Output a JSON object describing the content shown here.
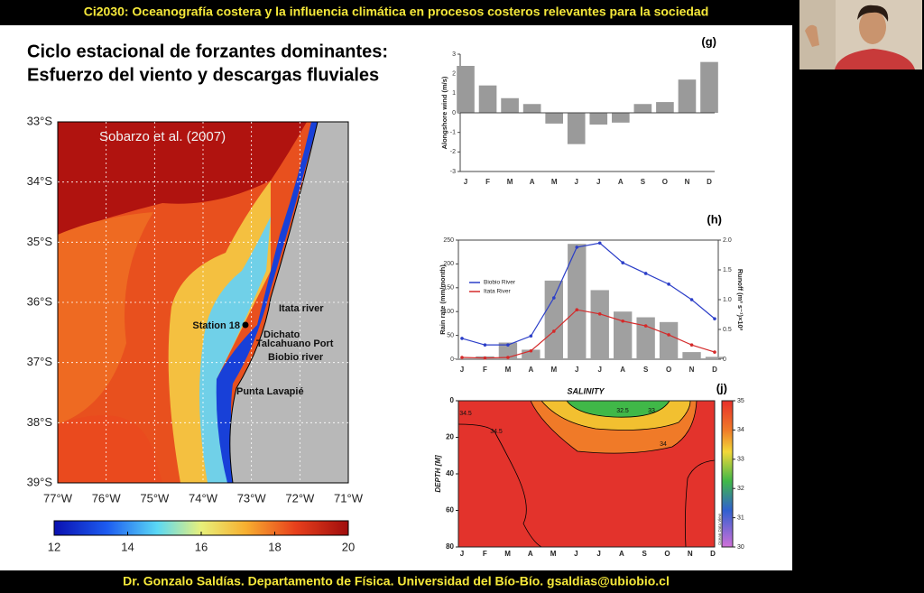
{
  "header": {
    "title": "Ci2030: Oceanografía costera y la influencia climática en procesos costeros relevantes para la sociedad"
  },
  "slide": {
    "title_lines": [
      "Ciclo estacional de forzantes dominantes:",
      "Esfuerzo del viento y descargas fluviales"
    ]
  },
  "map": {
    "citation": "Sobarzo et al. (2007)",
    "lat_labels": [
      "33°S",
      "34°S",
      "35°S",
      "36°S",
      "37°S",
      "38°S",
      "39°S"
    ],
    "lon_labels": [
      "77°W",
      "76°W",
      "75°W",
      "74°W",
      "73°W",
      "72°W",
      "71°W"
    ],
    "places": [
      "Itata river",
      "Station 18",
      "Dichato",
      "Talcahuano Port",
      "Biobio river",
      "Punta Lavapié"
    ],
    "colorbar": {
      "lim": [
        12,
        20
      ],
      "ticks": [
        12,
        14,
        16,
        18,
        20
      ]
    }
  },
  "chart_data": [
    {
      "type": "bar",
      "panel": "(g)",
      "y_label": "Alongshore wind (m/s)",
      "categories": [
        "J",
        "F",
        "M",
        "A",
        "M",
        "J",
        "J",
        "A",
        "S",
        "O",
        "N",
        "D"
      ],
      "values": [
        2.4,
        1.4,
        0.75,
        0.45,
        -0.55,
        -1.6,
        -0.6,
        -0.5,
        0.45,
        0.55,
        1.7,
        2.6
      ],
      "color": "#9a9a9a",
      "ylim": [
        -3,
        3
      ],
      "yticks": [
        -3,
        -2,
        -1,
        0,
        1,
        2,
        3
      ]
    },
    {
      "type": "bar",
      "panel": "(h)",
      "y_label": "Rain rate (mm/month)",
      "y2_label": "Runoff (m³ s⁻¹)×10³",
      "categories": [
        "J",
        "F",
        "M",
        "A",
        "M",
        "J",
        "J",
        "A",
        "S",
        "O",
        "N",
        "D"
      ],
      "values": [
        2,
        6,
        35,
        20,
        165,
        242,
        145,
        100,
        88,
        78,
        15,
        5
      ],
      "color": "#a0a0a0",
      "ylim": [
        0,
        250
      ],
      "yticks": [
        0,
        50,
        100,
        150,
        200,
        250
      ],
      "y2lim": [
        0,
        2
      ],
      "y2ticks": [
        0,
        0.5,
        {
          "value": 1,
          "label": "1.0"
        },
        {
          "value": 1.5,
          "label": "1.5"
        },
        {
          "value": 2,
          "label": "2.0"
        }
      ],
      "legend": "upper-left",
      "series": [
        {
          "name": "Biobio River",
          "color": "#2b3ec8",
          "axis": "y2",
          "values": [
            0.35,
            0.24,
            0.24,
            0.39,
            1.03,
            1.88,
            1.95,
            1.62,
            1.44,
            1.26,
            1.0,
            0.68
          ]
        },
        {
          "name": "Itata River",
          "color": "#d42a2a",
          "axis": "y2",
          "values": [
            0.03,
            0.02,
            0.03,
            0.14,
            0.47,
            0.83,
            0.76,
            0.64,
            0.56,
            0.41,
            0.24,
            0.12
          ]
        }
      ]
    },
    {
      "type": "contour",
      "panel": "(j)",
      "title": "SALINITY",
      "y_label": "DEPTH [M]",
      "note": "Ocean Data View",
      "categories": [
        "J",
        "F",
        "M",
        "A",
        "M",
        "J",
        "J",
        "A",
        "S",
        "O",
        "N",
        "D"
      ],
      "ylim": [
        0,
        80
      ],
      "yticks": [
        0,
        20,
        40,
        60,
        80
      ],
      "colorbar": {
        "lim": [
          30,
          35
        ],
        "ticks": [
          30,
          31,
          32,
          33,
          34,
          35
        ]
      },
      "contour_labels": [
        34.5,
        32.5,
        33,
        34,
        34.5
      ]
    }
  ],
  "footer": {
    "text": "Dr. Gonzalo Saldías. Departamento de Física. Universidad del Bío-Bío. gsaldias@ubiobio.cl"
  }
}
